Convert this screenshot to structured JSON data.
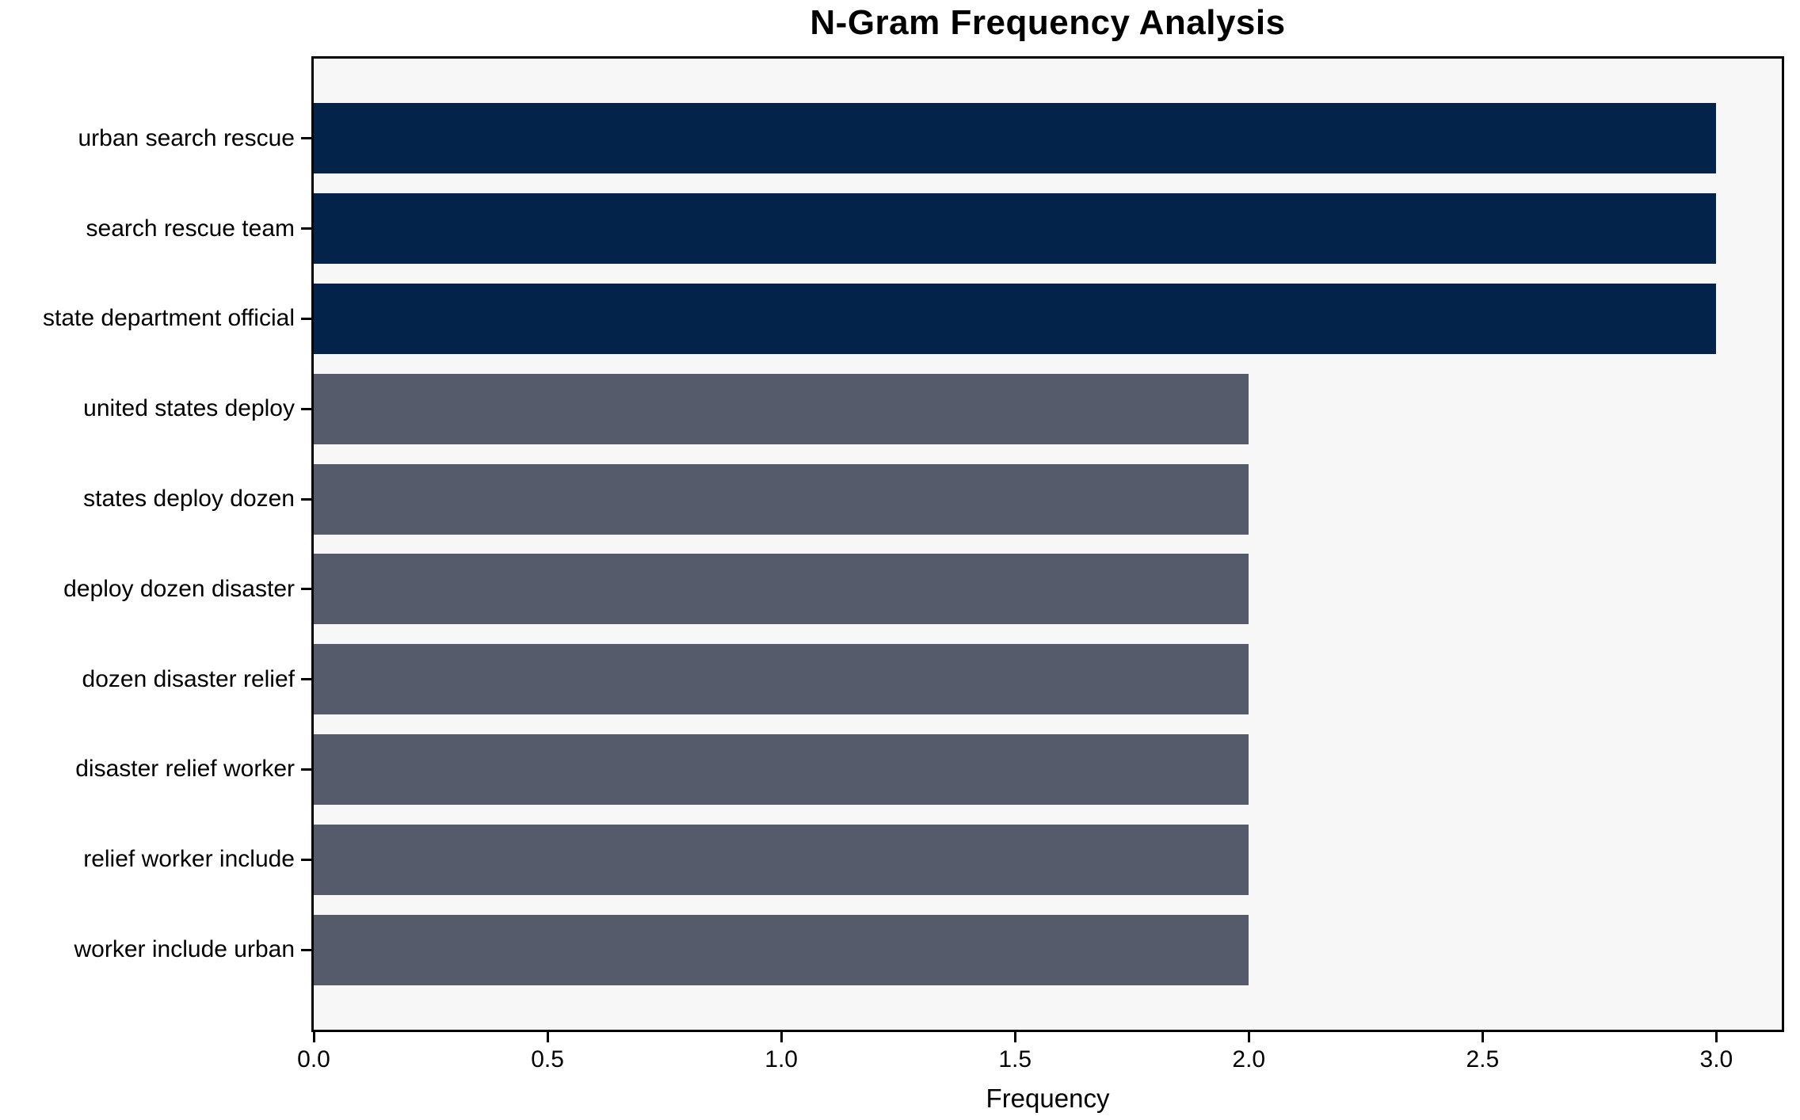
{
  "chart_data": {
    "type": "bar",
    "orientation": "horizontal",
    "title": "N-Gram Frequency Analysis",
    "xlabel": "Frequency",
    "ylabel": "",
    "categories": [
      "urban search rescue",
      "search rescue team",
      "state department official",
      "united states deploy",
      "states deploy dozen",
      "deploy dozen disaster",
      "dozen disaster relief",
      "disaster relief worker",
      "relief worker include",
      "worker include urban"
    ],
    "values": [
      3,
      3,
      3,
      2,
      2,
      2,
      2,
      2,
      2,
      2
    ],
    "bar_colors": [
      "#03234b",
      "#03234b",
      "#03234b",
      "#565b6c",
      "#565b6c",
      "#565b6c",
      "#565b6c",
      "#565b6c",
      "#565b6c",
      "#565b6c"
    ],
    "xlim": [
      0,
      3.14
    ],
    "xticks": [
      0,
      0.5,
      1,
      1.5,
      2,
      2.5,
      3
    ],
    "xtick_labels": [
      "0.0",
      "0.5",
      "1.0",
      "1.5",
      "2.0",
      "2.5",
      "3.0"
    ],
    "grid": false,
    "legend": null,
    "colors": {
      "highlight": "#03234b",
      "default": "#565b6c",
      "plot_background": "#f7f7f7",
      "figure_background": "#ffffff",
      "axis_border": "#000000",
      "text": "#000000"
    }
  }
}
